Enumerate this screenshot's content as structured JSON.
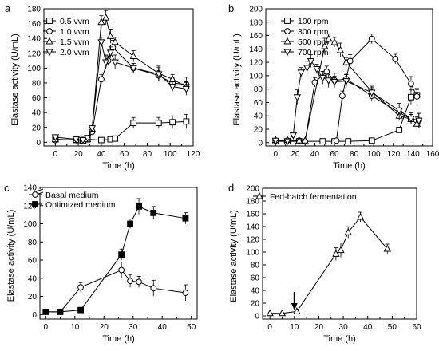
{
  "chart_data": [
    {
      "panel": "a",
      "type": "line",
      "xlabel": "Time (h)",
      "ylabel": "Elastase activity (U/mL)",
      "xlim": [
        -10,
        120
      ],
      "ylim": [
        -5,
        180
      ],
      "xticks": [
        0,
        20,
        40,
        60,
        80,
        100,
        120
      ],
      "yticks": [
        0,
        20,
        40,
        60,
        80,
        100,
        120,
        140,
        160,
        180
      ],
      "legend_position": "top-left",
      "series": [
        {
          "name": "0.5 vvm",
          "marker": "square",
          "points": [
            [
              0,
              4
            ],
            [
              18,
              3
            ],
            [
              24,
              3
            ],
            [
              28,
              4
            ],
            [
              40,
              3
            ],
            [
              48,
              4
            ],
            [
              52,
              5
            ],
            [
              68,
              26
            ],
            [
              90,
              26
            ],
            [
              102,
              27
            ],
            [
              114,
              28
            ]
          ]
        },
        {
          "name": "1.0 vvm",
          "marker": "circle",
          "points": [
            [
              0,
              3
            ],
            [
              18,
              3
            ],
            [
              24,
              3
            ],
            [
              28,
              5
            ],
            [
              32,
              14
            ],
            [
              40,
              85
            ],
            [
              46,
              110
            ],
            [
              50,
              128
            ],
            [
              68,
              100
            ],
            [
              90,
              90
            ],
            [
              102,
              80
            ],
            [
              114,
              78
            ]
          ]
        },
        {
          "name": "1.5 vvm",
          "marker": "triangle-up",
          "points": [
            [
              0,
              4
            ],
            [
              18,
              3
            ],
            [
              24,
              2
            ],
            [
              28,
              4
            ],
            [
              32,
              18
            ],
            [
              40,
              162
            ],
            [
              44,
              168
            ],
            [
              48,
              143
            ],
            [
              52,
              135
            ],
            [
              68,
              116
            ],
            [
              90,
              93
            ],
            [
              102,
              85
            ],
            [
              114,
              75
            ]
          ]
        },
        {
          "name": "2.0 vvm",
          "marker": "triangle-down",
          "points": [
            [
              0,
              7
            ],
            [
              18,
              4
            ],
            [
              24,
              3
            ],
            [
              28,
              6
            ],
            [
              32,
              19
            ],
            [
              40,
              135
            ],
            [
              44,
              108
            ],
            [
              48,
              121
            ],
            [
              52,
              108
            ],
            [
              68,
              100
            ],
            [
              90,
              92
            ],
            [
              102,
              75
            ],
            [
              114,
              72
            ]
          ]
        }
      ]
    },
    {
      "panel": "b",
      "type": "line",
      "xlabel": "Time (h)",
      "ylabel": "Elastase activity (U/mL)",
      "xlim": [
        -10,
        160
      ],
      "ylim": [
        -5,
        200
      ],
      "xticks": [
        0,
        20,
        40,
        60,
        80,
        100,
        120,
        140,
        160
      ],
      "yticks": [
        0,
        20,
        40,
        60,
        80,
        100,
        120,
        140,
        160,
        180,
        200
      ],
      "legend_position": "top-left",
      "series": [
        {
          "name": "100 rpm",
          "marker": "square",
          "points": [
            [
              0,
              2
            ],
            [
              12,
              2
            ],
            [
              24,
              2
            ],
            [
              48,
              2
            ],
            [
              60,
              2
            ],
            [
              74,
              2
            ],
            [
              98,
              3
            ],
            [
              126,
              19
            ],
            [
              138,
              68
            ],
            [
              144,
              71
            ]
          ]
        },
        {
          "name": "300 rpm",
          "marker": "circle",
          "points": [
            [
              0,
              3
            ],
            [
              12,
              3
            ],
            [
              24,
              3
            ],
            [
              30,
              2
            ],
            [
              40,
              90
            ],
            [
              52,
              106
            ],
            [
              60,
              93
            ],
            [
              72,
              95
            ],
            [
              98,
              70
            ],
            [
              126,
              45
            ],
            [
              138,
              35
            ],
            [
              146,
              33
            ]
          ]
        },
        {
          "name": "500 rpm",
          "marker": "triangle-up",
          "points": [
            [
              0,
              4
            ],
            [
              12,
              4
            ],
            [
              24,
              3
            ],
            [
              30,
              3
            ],
            [
              50,
              144
            ],
            [
              54,
              155
            ],
            [
              60,
              150
            ],
            [
              66,
              138
            ],
            [
              72,
              120
            ],
            [
              98,
              76
            ],
            [
              126,
              40
            ],
            [
              138,
              35
            ],
            [
              144,
              28
            ]
          ]
        },
        {
          "name": "700 rpm",
          "marker": "triangle-down",
          "points": [
            [
              0,
              3
            ],
            [
              12,
              2
            ],
            [
              18,
              11
            ],
            [
              22,
              68
            ],
            [
              26,
              105
            ],
            [
              32,
              112
            ],
            [
              36,
              122
            ],
            [
              42,
              110
            ],
            [
              48,
              97
            ],
            [
              54,
              93
            ],
            [
              60,
              91
            ],
            [
              72,
              92
            ],
            [
              98,
              75
            ],
            [
              126,
              48
            ],
            [
              138,
              36
            ],
            [
              146,
              33
            ]
          ]
        },
        {
          "name": "",
          "marker": "circle",
          "points": [
            [
              62,
              3
            ],
            [
              68,
              70
            ],
            [
              76,
              122
            ],
            [
              98,
              155
            ],
            [
              122,
              125
            ],
            [
              138,
              88
            ],
            [
              144,
              69
            ]
          ]
        }
      ]
    },
    {
      "panel": "c",
      "type": "line",
      "xlabel": "Time (h)",
      "ylabel": "Elastase activity (U/mL)",
      "xlim": [
        -2,
        52
      ],
      "ylim": [
        -5,
        140
      ],
      "xticks": [
        0,
        10,
        20,
        30,
        40,
        50
      ],
      "yticks": [
        0,
        20,
        40,
        60,
        80,
        100,
        120,
        140
      ],
      "axis_break": true,
      "legend_position": "top-left",
      "series": [
        {
          "name": "Basal medium",
          "marker": "circle-open",
          "points": [
            [
              0,
              3
            ],
            [
              5,
              3
            ],
            [
              12,
              30
            ],
            [
              26,
              49
            ],
            [
              29,
              37
            ],
            [
              32,
              36
            ],
            [
              37,
              29
            ],
            [
              48,
              24
            ]
          ]
        },
        {
          "name": "Optimized medium",
          "marker": "square-filled",
          "points": [
            [
              0,
              3
            ],
            [
              5,
              3
            ],
            [
              12,
              5
            ],
            [
              26,
              66
            ],
            [
              29,
              100
            ],
            [
              32,
              119
            ],
            [
              37,
              112
            ],
            [
              48,
              106
            ]
          ]
        }
      ]
    },
    {
      "panel": "d",
      "type": "line",
      "xlabel": "Time (h)",
      "ylabel": "Elastase activity (U/mL)",
      "xlim": [
        -3,
        60
      ],
      "ylim": [
        -5,
        200
      ],
      "xticks": [
        0,
        10,
        20,
        30,
        40,
        50,
        60
      ],
      "yticks": [
        0,
        20,
        40,
        60,
        80,
        100,
        120,
        140,
        160,
        180,
        200
      ],
      "legend_position": "top-left",
      "arrow_at_x": 10,
      "series": [
        {
          "name": "Fed-batch fermentation",
          "marker": "triangle-up",
          "points": [
            [
              0,
              4
            ],
            [
              5,
              4
            ],
            [
              11,
              7
            ],
            [
              27,
              97
            ],
            [
              29,
              103
            ],
            [
              32,
              131
            ],
            [
              37,
              155
            ],
            [
              48,
              105
            ]
          ]
        }
      ]
    }
  ]
}
